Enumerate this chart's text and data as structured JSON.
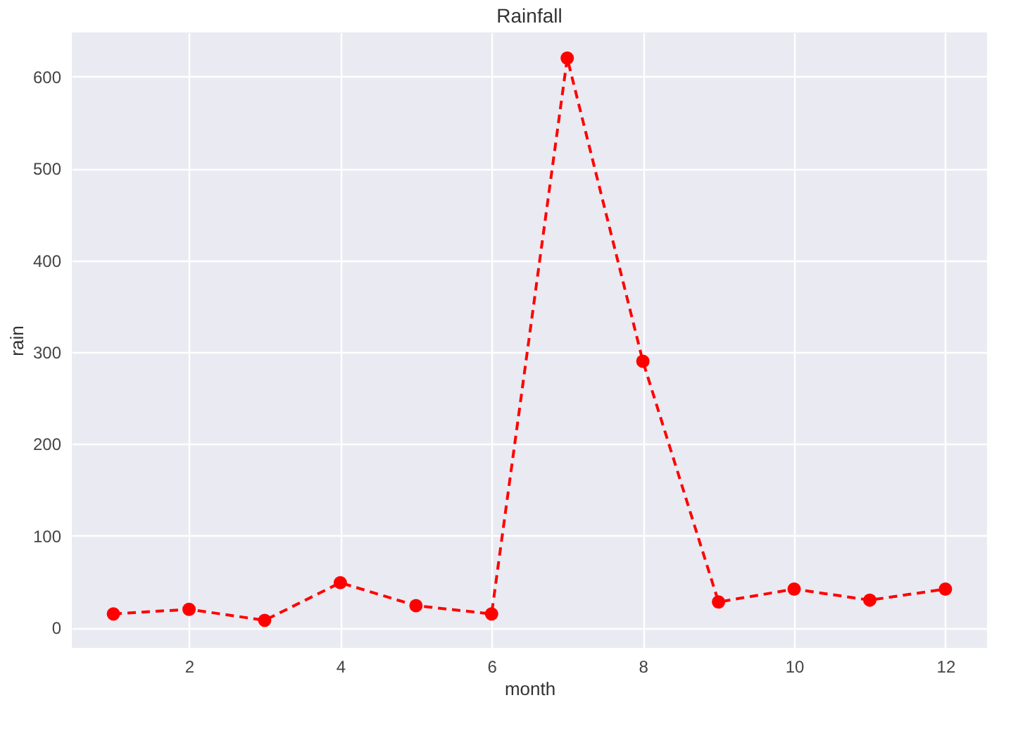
{
  "chart_data": {
    "type": "line",
    "title": "Rainfall",
    "xlabel": "month",
    "ylabel": "rain",
    "x": [
      1,
      2,
      3,
      4,
      5,
      6,
      7,
      8,
      9,
      10,
      11,
      12
    ],
    "series": [
      {
        "color": "#ff0000",
        "values": [
          15,
          20,
          8,
          49,
          24,
          15,
          620,
          290,
          28,
          42,
          30,
          42
        ]
      }
    ],
    "xlim": [
      0.45,
      12.55
    ],
    "ylim": [
      -22,
      648
    ],
    "xticks": [
      2,
      4,
      6,
      8,
      10,
      12
    ],
    "yticks": [
      0,
      100,
      200,
      300,
      400,
      500,
      600
    ],
    "grid": true,
    "marker": "circle",
    "line_style": "dashed"
  }
}
